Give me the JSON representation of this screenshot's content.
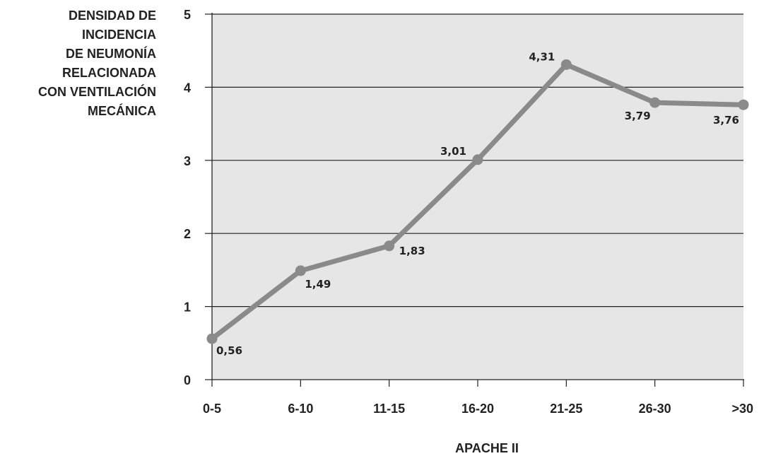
{
  "chart_data": {
    "type": "line",
    "categories": [
      "0-5",
      "6-10",
      "11-15",
      "16-20",
      "21-25",
      "26-30",
      ">30"
    ],
    "values": [
      0.56,
      1.49,
      1.83,
      3.01,
      4.31,
      3.79,
      3.76
    ],
    "value_labels": [
      "0,56",
      "1,49",
      "1,83",
      "3,01",
      "4,31",
      "3,79",
      "3,76"
    ],
    "ylabel_lines": [
      "DENSIDAD DE",
      "INCIDENCIA",
      "DE NEUMONÍA",
      "RELACIONADA",
      "CON VENTILACIÓN",
      "MECÁNICA"
    ],
    "xlabel": "APACHE II",
    "yticks": [
      "0",
      "1",
      "2",
      "3",
      "4",
      "5"
    ],
    "ylim": [
      0,
      5
    ],
    "grid": true,
    "colors": {
      "line": "#8a8a8a",
      "plot_bg": "#e6e6e6",
      "grid": "#222222"
    }
  }
}
